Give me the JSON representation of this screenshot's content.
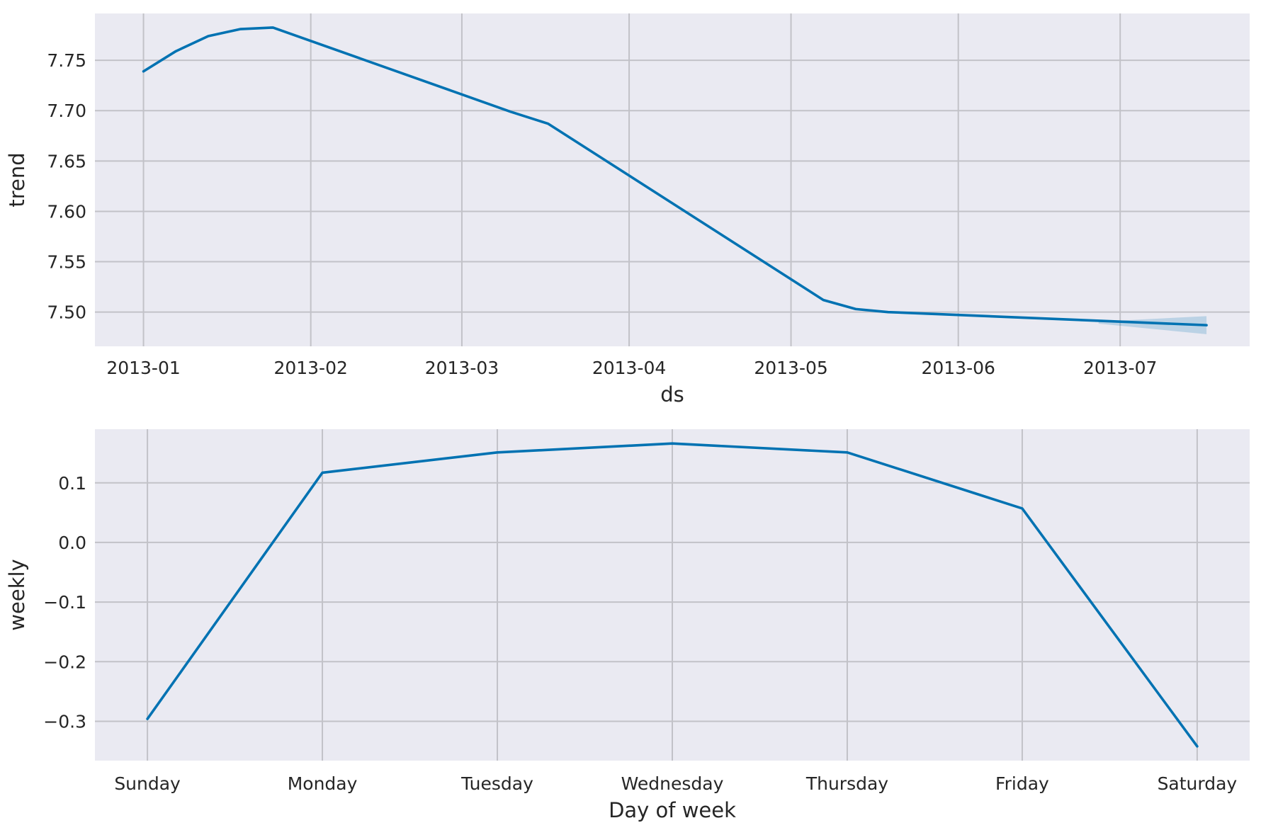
{
  "chart_data": [
    {
      "type": "line",
      "xlabel": "ds",
      "ylabel": "trend",
      "x_axis": "date",
      "xlim": [
        "2012-12-23",
        "2013-07-25"
      ],
      "ylim": [
        7.466,
        7.7965
      ],
      "x_ticks": [
        "2013-01",
        "2013-02",
        "2013-03",
        "2013-04",
        "2013-05",
        "2013-06",
        "2013-07"
      ],
      "y_ticks": [
        "7.50",
        "7.55",
        "7.60",
        "7.65",
        "7.70",
        "7.75"
      ],
      "grid": true,
      "series": [
        {
          "color": "#0072b2",
          "x": [
            "2013-01-01",
            "2013-01-07",
            "2013-01-13",
            "2013-01-19",
            "2013-01-25",
            "2013-03-10",
            "2013-03-17",
            "2013-05-07",
            "2013-05-13",
            "2013-05-19",
            "2013-07-17"
          ],
          "y": [
            7.739,
            7.759,
            7.774,
            7.781,
            7.7825,
            7.699,
            7.687,
            7.512,
            7.503,
            7.5,
            7.487
          ],
          "interval_x": [
            "2013-06-27",
            "2013-07-17"
          ],
          "interval_lower": [
            7.4885,
            7.478
          ],
          "interval_upper": [
            7.4905,
            7.496
          ]
        }
      ]
    },
    {
      "type": "line",
      "xlabel": "Day of week",
      "ylabel": "weekly",
      "categories": [
        "Sunday",
        "Monday",
        "Tuesday",
        "Wednesday",
        "Thursday",
        "Friday",
        "Saturday"
      ],
      "ylim": [
        -0.366,
        0.19
      ],
      "y_ticks": [
        "−0.3",
        "−0.2",
        "−0.1",
        "0.0",
        "0.1"
      ],
      "grid": true,
      "series": [
        {
          "color": "#0072b2",
          "values": [
            -0.296,
            0.117,
            0.151,
            0.166,
            0.151,
            0.057,
            -0.342
          ]
        }
      ]
    }
  ]
}
